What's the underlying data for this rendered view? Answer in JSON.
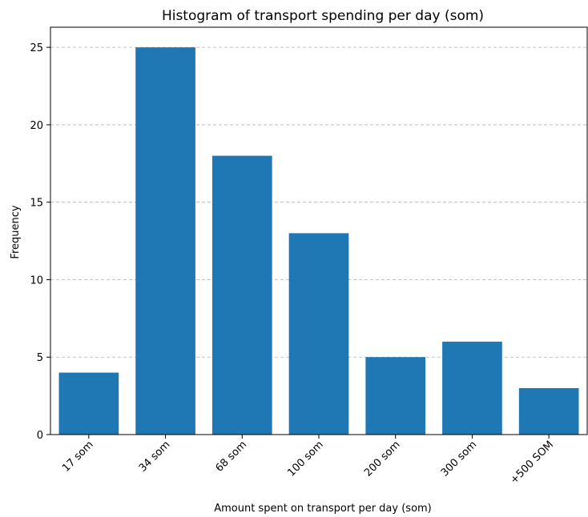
{
  "chart_data": {
    "type": "bar",
    "title": "Histogram of transport spending per day (som)",
    "xlabel": "Amount spent on transport per day (som)",
    "ylabel": "Frequency",
    "categories": [
      "17 som",
      "34 som",
      "68 som",
      "100 som",
      "200 som",
      "300 som",
      "+500 SOM"
    ],
    "values": [
      4,
      25,
      18,
      13,
      5,
      6,
      3
    ],
    "ylim": [
      0,
      26.3
    ],
    "yticks": [
      0,
      5,
      10,
      15,
      20,
      25
    ],
    "grid": "y-dashed",
    "bar_color": "#1f77b4",
    "grid_color": "#b0b0b0"
  }
}
